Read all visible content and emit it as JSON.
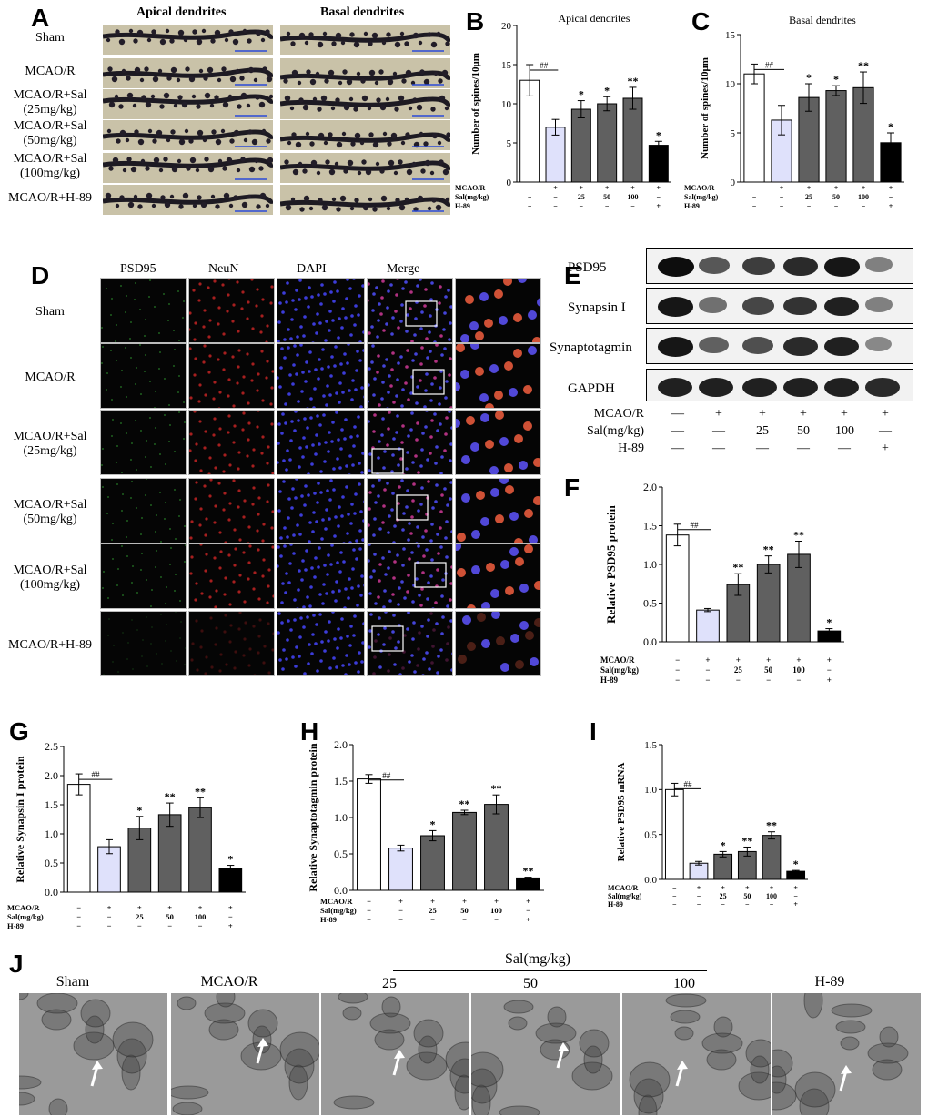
{
  "panels": {
    "A": {
      "letter": "A",
      "col_headers": [
        "Apical dendrites",
        "Basal dendrites"
      ],
      "rows": [
        "Sham",
        "MCAO/R",
        "MCAO/R+Sal\n(25mg/kg)",
        "MCAO/R+Sal\n(50mg/kg)",
        "MCAO/R+Sal\n(100mg/kg)",
        "MCAO/R+H-89"
      ]
    },
    "D": {
      "letter": "D",
      "col_headers": [
        "PSD95",
        "NeuN",
        "DAPI",
        "Merge"
      ],
      "rows": [
        "Sham",
        "MCAO/R",
        "MCAO/R+Sal\n(25mg/kg)",
        "MCAO/R+Sal\n(50mg/kg)",
        "MCAO/R+Sal\n(100mg/kg)",
        "MCAO/R+H-89"
      ]
    },
    "E": {
      "letter": "E",
      "proteins": [
        "PSD95",
        "Synapsin I",
        "Synaptotagmin",
        "GAPDH"
      ],
      "band_intensity": [
        [
          1.0,
          0.6,
          0.75,
          0.85,
          0.95,
          0.35
        ],
        [
          0.95,
          0.45,
          0.7,
          0.8,
          0.9,
          0.35
        ],
        [
          0.95,
          0.55,
          0.65,
          0.85,
          0.9,
          0.3
        ],
        [
          0.9,
          0.9,
          0.9,
          0.9,
          0.9,
          0.85
        ]
      ],
      "treat_rows": [
        {
          "label": "MCAO/R",
          "values": [
            "—",
            "+",
            "+",
            "+",
            "+",
            "+"
          ]
        },
        {
          "label": "Sal(mg/kg)",
          "values": [
            "—",
            "—",
            "25",
            "50",
            "100",
            "—"
          ]
        },
        {
          "label": "H-89",
          "values": [
            "—",
            "—",
            "—",
            "—",
            "—",
            "+"
          ]
        }
      ]
    },
    "J": {
      "letter": "J",
      "group_label": "Sal(mg/kg)",
      "labels": [
        "Sham",
        "MCAO/R",
        "25",
        "50",
        "100",
        "H-89"
      ]
    }
  },
  "chart_data": [
    {
      "id": "B",
      "letter": "B",
      "type": "bar",
      "title": "Apical dendrites",
      "ylabel": "Number of spines/10μm",
      "ylim": [
        0,
        20
      ],
      "yticks": [
        0,
        5,
        10,
        15,
        20
      ],
      "values": [
        13.0,
        7.0,
        9.3,
        10.0,
        10.7,
        4.7
      ],
      "errors": [
        2.0,
        1.0,
        1.1,
        0.9,
        1.4,
        0.5
      ],
      "sig": [
        "",
        "",
        "*",
        "*",
        "**",
        "*"
      ],
      "hash": "##",
      "treat_rows": [
        {
          "label": "MCAO/R",
          "values": [
            "−",
            "+",
            "+",
            "+",
            "+",
            "+"
          ]
        },
        {
          "label": "Sal(mg/kg)",
          "values": [
            "−",
            "−",
            "25",
            "50",
            "100",
            "−"
          ]
        },
        {
          "label": "H-89",
          "values": [
            "−",
            "−",
            "−",
            "−",
            "−",
            "+"
          ]
        }
      ]
    },
    {
      "id": "C",
      "letter": "C",
      "type": "bar",
      "title": "Basal dendrites",
      "ylabel": "Number of spines/10μm",
      "ylim": [
        0,
        15
      ],
      "yticks": [
        0,
        5,
        10,
        15
      ],
      "values": [
        11.0,
        6.3,
        8.6,
        9.3,
        9.6,
        4.0
      ],
      "errors": [
        1.0,
        1.5,
        1.4,
        0.5,
        1.6,
        1.0
      ],
      "sig": [
        "",
        "",
        "*",
        "*",
        "**",
        "*"
      ],
      "hash": "##",
      "treat_rows": [
        {
          "label": "MCAO/R",
          "values": [
            "−",
            "+",
            "+",
            "+",
            "+",
            "+"
          ]
        },
        {
          "label": "Sal(mg/kg)",
          "values": [
            "−",
            "−",
            "25",
            "50",
            "100",
            "−"
          ]
        },
        {
          "label": "H-89",
          "values": [
            "−",
            "−",
            "−",
            "−",
            "−",
            "+"
          ]
        }
      ]
    },
    {
      "id": "F",
      "letter": "F",
      "type": "bar",
      "title": "",
      "ylabel": "Relative PSD95 protein",
      "ylim": [
        0,
        2.0
      ],
      "yticks": [
        0.0,
        0.5,
        1.0,
        1.5,
        2.0
      ],
      "values": [
        1.38,
        0.41,
        0.74,
        1.0,
        1.13,
        0.14
      ],
      "errors": [
        0.14,
        0.02,
        0.14,
        0.11,
        0.17,
        0.03
      ],
      "sig": [
        "",
        "",
        "**",
        "**",
        "**",
        "*"
      ],
      "hash": "##",
      "treat_rows": [
        {
          "label": "MCAO/R",
          "values": [
            "−",
            "+",
            "+",
            "+",
            "+",
            "+"
          ]
        },
        {
          "label": "Sal(mg/kg)",
          "values": [
            "−",
            "−",
            "25",
            "50",
            "100",
            "−"
          ]
        },
        {
          "label": "H-89",
          "values": [
            "−",
            "−",
            "−",
            "−",
            "−",
            "+"
          ]
        }
      ]
    },
    {
      "id": "G",
      "letter": "G",
      "type": "bar",
      "title": "",
      "ylabel": "Relative Synapsin I protein",
      "ylim": [
        0,
        2.5
      ],
      "yticks": [
        0.0,
        0.5,
        1.0,
        1.5,
        2.0,
        2.5
      ],
      "values": [
        1.85,
        0.78,
        1.1,
        1.33,
        1.45,
        0.41
      ],
      "errors": [
        0.18,
        0.12,
        0.2,
        0.2,
        0.17,
        0.05
      ],
      "sig": [
        "",
        "",
        "*",
        "**",
        "**",
        "*"
      ],
      "hash": "##",
      "treat_rows": [
        {
          "label": "MCAO/R",
          "values": [
            "−",
            "+",
            "+",
            "+",
            "+",
            "+"
          ]
        },
        {
          "label": "Sal(mg/kg)",
          "values": [
            "−",
            "−",
            "25",
            "50",
            "100",
            "−"
          ]
        },
        {
          "label": "H-89",
          "values": [
            "−",
            "−",
            "−",
            "−",
            "−",
            "+"
          ]
        }
      ]
    },
    {
      "id": "H",
      "letter": "H",
      "type": "bar",
      "title": "",
      "ylabel": "Relative Synaptotagmin protein",
      "ylim": [
        0,
        2.0
      ],
      "yticks": [
        0.0,
        0.5,
        1.0,
        1.5,
        2.0
      ],
      "values": [
        1.53,
        0.58,
        0.75,
        1.07,
        1.18,
        0.17
      ],
      "errors": [
        0.06,
        0.04,
        0.07,
        0.03,
        0.13,
        0.01
      ],
      "sig": [
        "",
        "",
        "*",
        "**",
        "**",
        "**"
      ],
      "hash": "##",
      "treat_rows": [
        {
          "label": "MCAO/R",
          "values": [
            "−",
            "+",
            "+",
            "+",
            "+",
            "+"
          ]
        },
        {
          "label": "Sal(mg/kg)",
          "values": [
            "−",
            "−",
            "25",
            "50",
            "100",
            "−"
          ]
        },
        {
          "label": "H-89",
          "values": [
            "−",
            "−",
            "−",
            "−",
            "−",
            "+"
          ]
        }
      ]
    },
    {
      "id": "I",
      "letter": "I",
      "type": "bar",
      "title": "",
      "ylabel": "Relative PSD95 mRNA",
      "ylim": [
        0,
        1.5
      ],
      "yticks": [
        0.0,
        0.5,
        1.0,
        1.5
      ],
      "values": [
        1.0,
        0.18,
        0.28,
        0.31,
        0.49,
        0.09
      ],
      "errors": [
        0.07,
        0.02,
        0.03,
        0.05,
        0.04,
        0.01
      ],
      "sig": [
        "",
        "",
        "*",
        "**",
        "**",
        "*"
      ],
      "hash": "##",
      "treat_rows": [
        {
          "label": "MCAO/R",
          "values": [
            "−",
            "+",
            "+",
            "+",
            "+",
            "+"
          ]
        },
        {
          "label": "Sal(mg/kg)",
          "values": [
            "−",
            "−",
            "25",
            "50",
            "100",
            "−"
          ]
        },
        {
          "label": "H-89",
          "values": [
            "−",
            "−",
            "−",
            "−",
            "−",
            "+"
          ]
        }
      ]
    }
  ],
  "colors": {
    "sham": "#ffffff",
    "mcao": "#dfe1fb",
    "sal": "#606060",
    "h89": "#000000"
  }
}
